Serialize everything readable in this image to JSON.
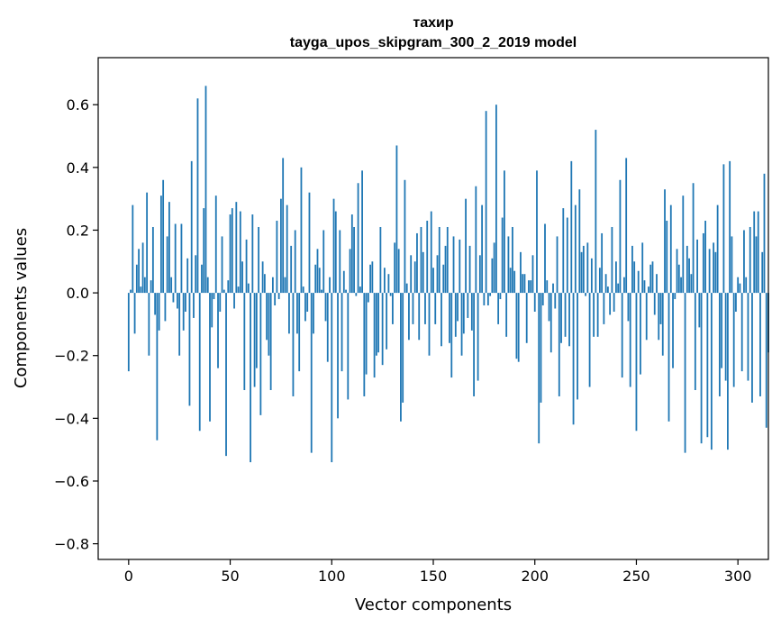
{
  "chart_data": {
    "type": "bar",
    "title": "тахир",
    "subtitle": "tayga_upos_skipgram_300_2_2019 model",
    "xlabel": "Vector components",
    "ylabel": "Components values",
    "xlim": [
      -15,
      315
    ],
    "ylim": [
      -0.85,
      0.75
    ],
    "xticks": [
      0,
      50,
      100,
      150,
      200,
      250,
      300
    ],
    "xtick_labels": [
      "0",
      "50",
      "100",
      "150",
      "200",
      "250",
      "300"
    ],
    "yticks": [
      -0.8,
      -0.6,
      -0.4,
      -0.2,
      0.0,
      0.2,
      0.4,
      0.6
    ],
    "ytick_labels": [
      "−0.8",
      "−0.6",
      "−0.4",
      "−0.2",
      "0.0",
      "0.2",
      "0.4",
      "0.6"
    ],
    "color": "#1f77b4",
    "values": [
      -0.25,
      0.01,
      0.28,
      -0.13,
      0.09,
      0.14,
      0.02,
      0.16,
      0.05,
      0.32,
      -0.2,
      0.04,
      0.21,
      -0.07,
      -0.47,
      -0.12,
      0.31,
      0.36,
      -0.09,
      0.18,
      0.29,
      0.05,
      -0.03,
      0.22,
      -0.05,
      -0.2,
      0.22,
      -0.12,
      -0.06,
      0.11,
      -0.36,
      0.42,
      -0.08,
      0.12,
      0.62,
      -0.44,
      0.09,
      0.27,
      0.66,
      0.05,
      -0.41,
      -0.11,
      -0.02,
      0.31,
      -0.24,
      -0.06,
      0.18,
      0.01,
      -0.52,
      0.04,
      0.25,
      0.27,
      -0.05,
      0.29,
      0.02,
      0.26,
      0.1,
      -0.31,
      0.17,
      0.03,
      -0.54,
      0.25,
      -0.3,
      -0.24,
      0.21,
      -0.39,
      0.1,
      0.06,
      -0.15,
      -0.2,
      -0.31,
      0.05,
      -0.04,
      0.23,
      -0.02,
      0.3,
      0.43,
      0.05,
      0.28,
      -0.13,
      0.15,
      -0.33,
      0.2,
      -0.13,
      -0.25,
      0.4,
      0.02,
      -0.09,
      -0.06,
      0.32,
      -0.51,
      -0.13,
      0.09,
      0.14,
      0.08,
      0.01,
      0.2,
      -0.09,
      -0.22,
      0.05,
      -0.54,
      0.3,
      0.26,
      -0.4,
      0.2,
      -0.25,
      0.07,
      0.01,
      -0.34,
      0.14,
      0.25,
      0.21,
      -0.01,
      0.35,
      0.02,
      0.39,
      -0.33,
      -0.26,
      -0.03,
      0.09,
      0.1,
      -0.27,
      -0.2,
      -0.19,
      0.21,
      -0.23,
      0.08,
      -0.18,
      0.06,
      -0.01,
      -0.1,
      0.16,
      0.47,
      0.14,
      -0.41,
      -0.35,
      0.36,
      0.03,
      -0.15,
      0.12,
      -0.1,
      0.1,
      0.19,
      -0.15,
      0.21,
      0.13,
      -0.1,
      0.23,
      -0.2,
      0.26,
      0.08,
      -0.1,
      0.12,
      0.21,
      -0.17,
      0.09,
      0.15,
      0.21,
      -0.16,
      -0.27,
      0.18,
      -0.14,
      -0.09,
      0.17,
      -0.2,
      -0.13,
      0.3,
      -0.08,
      0.15,
      -0.12,
      -0.33,
      0.34,
      -0.28,
      0.12,
      0.28,
      -0.04,
      0.58,
      -0.04,
      -0.01,
      0.11,
      0.16,
      0.6,
      -0.1,
      -0.02,
      0.24,
      0.39,
      -0.14,
      0.18,
      0.08,
      0.21,
      0.07,
      -0.21,
      -0.22,
      0.13,
      0.06,
      0.06,
      -0.16,
      0.04,
      0.04,
      0.12,
      -0.06,
      0.39,
      -0.48,
      -0.35,
      -0.04,
      0.22,
      0.04,
      -0.09,
      -0.19,
      0.03,
      -0.05,
      0.18,
      -0.33,
      -0.16,
      0.27,
      -0.14,
      0.24,
      -0.17,
      0.42,
      -0.42,
      0.28,
      -0.34,
      0.33,
      0.13,
      0.15,
      -0.01,
      0.16,
      -0.3,
      0.11,
      -0.14,
      0.52,
      -0.14,
      0.08,
      0.19,
      -0.1,
      0.06,
      0.02,
      -0.07,
      0.21,
      -0.06,
      0.1,
      0.03,
      0.36,
      -0.27,
      0.05,
      0.43,
      -0.09,
      -0.3,
      0.15,
      0.1,
      -0.44,
      0.07,
      -0.26,
      0.16,
      0.04,
      -0.15,
      0.02,
      0.09,
      0.1,
      -0.07,
      0.06,
      -0.15,
      -0.1,
      -0.2,
      0.33,
      0.23,
      -0.41,
      0.28,
      -0.24,
      -0.02,
      0.14,
      0.09,
      0.05,
      0.31,
      -0.51,
      0.15,
      0.11,
      0.06,
      0.35,
      -0.31,
      0.17,
      -0.11,
      -0.48,
      0.19,
      0.23,
      -0.46,
      0.14,
      -0.5,
      0.16,
      0.13,
      0.28,
      -0.33,
      -0.24,
      0.41,
      -0.28,
      -0.5,
      0.42,
      0.18,
      -0.3,
      -0.06,
      0.05,
      0.03,
      -0.25,
      0.2,
      0.05,
      -0.28,
      0.21,
      -0.35,
      0.26,
      0.18,
      0.26,
      -0.33,
      0.13,
      0.38,
      -0.43,
      -0.19
    ]
  }
}
